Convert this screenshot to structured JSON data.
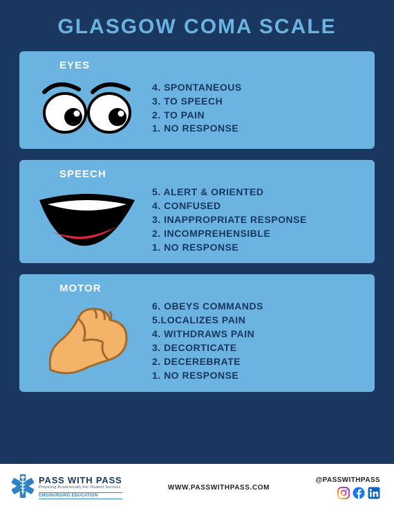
{
  "colors": {
    "page_bg": "#1a3760",
    "section_bg": "#6bb3e0",
    "title_color": "#6bb3e0",
    "label_color": "#ffffff",
    "item_text_color": "#17365f",
    "footer_bg": "#ffffff",
    "star_blue": "#2f82c4",
    "facebook": "#1877f2",
    "linkedin": "#0a66c2"
  },
  "typography": {
    "title_fontsize": 30,
    "label_fontsize": 15,
    "item_fontsize": 14,
    "footer_fontsize": 10
  },
  "title": "GLASGOW COMA SCALE",
  "sections": [
    {
      "id": "eyes",
      "label": "EYES",
      "icon": "eyes",
      "items": [
        {
          "num": 4,
          "text": "SPONTANEOUS"
        },
        {
          "num": 3,
          "text": "TO SPEECH"
        },
        {
          "num": 2,
          "text": "TO PAIN"
        },
        {
          "num": 1,
          "text": "NO RESPONSE"
        }
      ]
    },
    {
      "id": "speech",
      "label": "SPEECH",
      "icon": "mouth",
      "items": [
        {
          "num": 5,
          "text": "ALERT & ORIENTED"
        },
        {
          "num": 4,
          "text": "CONFUSED"
        },
        {
          "num": 3,
          "text": "INAPPROPRIATE RESPONSE"
        },
        {
          "num": 2,
          "text": "INCOMPREHENSIBLE"
        },
        {
          "num": 1,
          "text": "NO RESPONSE"
        }
      ]
    },
    {
      "id": "motor",
      "label": "MOTOR",
      "icon": "arm",
      "items": [
        {
          "num": 6,
          "text": "OBEYS COMMANDS"
        },
        {
          "num": 5,
          "text": "LOCALIZES PAIN",
          "sep": "."
        },
        {
          "num": 4,
          "text": "WITHDRAWS PAIN"
        },
        {
          "num": 3,
          "text": "DECORTICATE"
        },
        {
          "num": 2,
          "text": "DECEREBRATE"
        },
        {
          "num": 1,
          "text": "NO RESPONSE"
        }
      ]
    }
  ],
  "footer": {
    "brand_main": "PASS WITH PASS",
    "brand_sub": "Preparing Academically For Student Success",
    "brand_edu": "EMS/NURSING EDUCATION",
    "website": "WWW.PASSWITHPASS.COM",
    "handle": "@PASSWITHPASS",
    "socials": [
      "instagram",
      "facebook",
      "linkedin"
    ]
  }
}
